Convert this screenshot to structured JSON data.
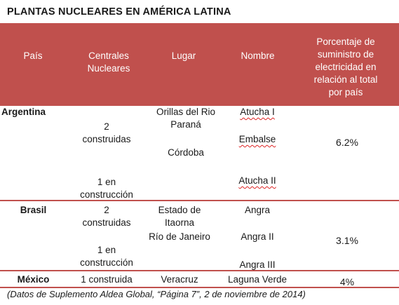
{
  "title": "PLANTAS NUCLEARES EN AMÉRICA LATINA",
  "header": {
    "pais": "País",
    "centrales": [
      "Centrales",
      "Nucleares"
    ],
    "lugar": "Lugar",
    "nombre": "Nombre",
    "porcentaje": [
      "Porcentaje de",
      "suministro de",
      "electricidad en",
      "relación al total",
      "por país"
    ]
  },
  "rows": [
    {
      "pais": "Argentina",
      "centrales": [
        "2",
        "construidas",
        "1 en",
        "construcción"
      ],
      "lugar": [
        "Orillas del Rio",
        "Paraná",
        "Córdoba"
      ],
      "nombre": [
        "Atucha I",
        "Embalse",
        "Atucha II"
      ],
      "porcentaje": "6.2%"
    },
    {
      "pais": "Brasil",
      "centrales": [
        "2",
        "construidas",
        "1 en",
        "construcción"
      ],
      "lugar": [
        "Estado de",
        "Itaorna",
        "Río de Janeiro"
      ],
      "nombre": [
        "Angra",
        "Angra II",
        "Angra III"
      ],
      "porcentaje": "3.1%"
    },
    {
      "pais": "México",
      "centrales": [
        "1 construida"
      ],
      "lugar": [
        "Veracruz"
      ],
      "nombre": [
        "Laguna Verde"
      ],
      "porcentaje": "4%"
    }
  ],
  "footnote": "(Datos de Suplemento Aldea Global, “Página 7”, 2 de noviembre de 2014)",
  "colors": {
    "accent": "#c0504d"
  }
}
